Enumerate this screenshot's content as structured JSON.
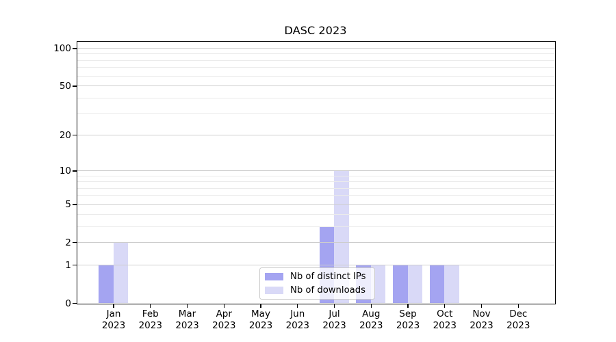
{
  "title": "DASC 2023",
  "chart_data": {
    "type": "bar",
    "title": "DASC 2023",
    "categories": [
      "Jan 2023",
      "Feb 2023",
      "Mar 2023",
      "Apr 2023",
      "May 2023",
      "Jun 2023",
      "Jul 2023",
      "Aug 2023",
      "Sep 2023",
      "Oct 2023",
      "Nov 2023",
      "Dec 2023"
    ],
    "x_tick_months": [
      "Jan",
      "Feb",
      "Mar",
      "Apr",
      "May",
      "Jun",
      "Jul",
      "Aug",
      "Sep",
      "Oct",
      "Nov",
      "Dec"
    ],
    "x_tick_year": "2023",
    "series": [
      {
        "name": "Nb of distinct IPs",
        "color": "#a4a4f1",
        "values": [
          1,
          0,
          0,
          0,
          0,
          0,
          3,
          1,
          1,
          1,
          0,
          0
        ]
      },
      {
        "name": "Nb of downloads",
        "color": "#d9d9f7",
        "values": [
          2,
          0,
          0,
          0,
          0,
          0,
          10,
          1,
          1,
          1,
          0,
          0
        ]
      }
    ],
    "yscale": "log1p",
    "ylim": [
      0,
      113
    ],
    "y_major_ticks": [
      0,
      1,
      2,
      5,
      10,
      20,
      50,
      100
    ],
    "y_minor_ticks": [
      3,
      4,
      6,
      7,
      8,
      9,
      30,
      40,
      60,
      70,
      80,
      90
    ],
    "grid": "horizontal, drawn above bars",
    "legend_position": "lower center inside plot"
  },
  "colors": {
    "distinct_ips": "#a4a4f1",
    "downloads": "#d9d9f7",
    "major_grid": "#cdcdcd",
    "minor_grid": "#ebebeb",
    "axis": "#000000",
    "background": "#ffffff"
  }
}
